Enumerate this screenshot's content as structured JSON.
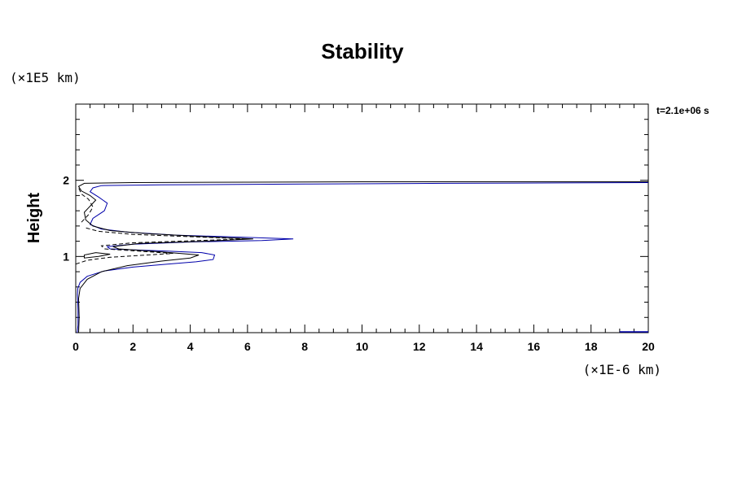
{
  "chart_data": {
    "type": "line",
    "title": "Stability",
    "ylabel": "Height",
    "xlabel": "",
    "y_unit_label": "(×1E5 km)",
    "x_unit_label": "(×1E-6 km)",
    "time_label": "t=2.1e+06 s",
    "xlim": [
      0,
      20
    ],
    "ylim": [
      0,
      3
    ],
    "x_ticks": [
      0,
      2,
      4,
      6,
      8,
      10,
      12,
      14,
      16,
      18,
      20
    ],
    "y_ticks_labeled": [
      1,
      2
    ],
    "grid": false,
    "colors": {
      "black": "#000000",
      "blue": "#0000aa"
    },
    "series": [
      {
        "color": "#0000aa",
        "dash": "solid",
        "points": [
          [
            0.05,
            0
          ],
          [
            0.08,
            0.1
          ],
          [
            0.08,
            0.3
          ],
          [
            0.06,
            0.5
          ],
          [
            0.07,
            0.58
          ],
          [
            0.15,
            0.66
          ],
          [
            0.4,
            0.74
          ],
          [
            1.0,
            0.81
          ],
          [
            2.0,
            0.86
          ],
          [
            3.2,
            0.9
          ],
          [
            4.2,
            0.93
          ],
          [
            4.8,
            0.96
          ],
          [
            4.85,
            1.02
          ],
          [
            4.4,
            1.05
          ],
          [
            3.2,
            1.07
          ],
          [
            1.8,
            1.09
          ],
          [
            1.2,
            1.1
          ],
          [
            1.1,
            1.13
          ],
          [
            2.0,
            1.16
          ],
          [
            4.0,
            1.19
          ],
          [
            6.5,
            1.21
          ],
          [
            7.6,
            1.23
          ],
          [
            6.0,
            1.25
          ],
          [
            3.5,
            1.28
          ],
          [
            1.8,
            1.32
          ],
          [
            0.9,
            1.36
          ],
          [
            0.5,
            1.42
          ],
          [
            0.6,
            1.5
          ],
          [
            1.0,
            1.6
          ],
          [
            1.1,
            1.7
          ],
          [
            0.8,
            1.78
          ],
          [
            0.5,
            1.85
          ],
          [
            0.6,
            1.9
          ],
          [
            0.9,
            1.93
          ],
          [
            3,
            1.94
          ],
          [
            8,
            1.95
          ],
          [
            13,
            1.96
          ],
          [
            17,
            1.965
          ],
          [
            20,
            1.97
          ]
        ]
      },
      {
        "color": "#000000",
        "dash": "solid",
        "points": [
          [
            0.1,
            0
          ],
          [
            0.12,
            0.2
          ],
          [
            0.1,
            0.45
          ],
          [
            0.15,
            0.58
          ],
          [
            0.4,
            0.7
          ],
          [
            0.9,
            0.8
          ],
          [
            1.8,
            0.88
          ],
          [
            3.0,
            0.94
          ],
          [
            4.0,
            0.98
          ],
          [
            4.3,
            1.02
          ],
          [
            3.0,
            1.06
          ],
          [
            1.5,
            1.1
          ],
          [
            1.3,
            1.13
          ],
          [
            2.2,
            1.17
          ],
          [
            4.5,
            1.2
          ],
          [
            6.2,
            1.23
          ],
          [
            4.5,
            1.26
          ],
          [
            2.5,
            1.3
          ],
          [
            1.2,
            1.34
          ],
          [
            0.6,
            1.4
          ],
          [
            0.35,
            1.48
          ],
          [
            0.3,
            1.58
          ],
          [
            0.5,
            1.66
          ],
          [
            0.7,
            1.74
          ],
          [
            0.5,
            1.8
          ],
          [
            0.2,
            1.86
          ],
          [
            0.1,
            1.92
          ],
          [
            0.3,
            1.96
          ],
          [
            2,
            1.97
          ],
          [
            6,
            1.975
          ],
          [
            10,
            1.98
          ],
          [
            14,
            1.98
          ],
          [
            20,
            1.98
          ]
        ]
      },
      {
        "color": "#000000",
        "dash": "dashed",
        "points": [
          [
            0.0,
            0.9
          ],
          [
            0.4,
            0.95
          ],
          [
            1.2,
            0.99
          ],
          [
            2.5,
            1.02
          ],
          [
            3.4,
            1.04
          ],
          [
            2.2,
            1.07
          ],
          [
            1.0,
            1.1
          ],
          [
            0.9,
            1.14
          ],
          [
            2.0,
            1.18
          ],
          [
            4.3,
            1.21
          ],
          [
            6.0,
            1.23
          ],
          [
            4.0,
            1.26
          ],
          [
            2.0,
            1.29
          ],
          [
            0.8,
            1.33
          ],
          [
            0.3,
            1.38
          ]
        ]
      },
      {
        "color": "#000000",
        "dash": "dashed",
        "points": [
          [
            0.2,
            1.45
          ],
          [
            0.45,
            1.55
          ],
          [
            0.6,
            1.65
          ],
          [
            0.45,
            1.75
          ],
          [
            0.2,
            1.82
          ],
          [
            0.1,
            1.9
          ]
        ]
      },
      {
        "color": "#000000",
        "dash": "solid",
        "points": [
          [
            0.7,
            1.05
          ],
          [
            1.2,
            1.03
          ],
          [
            0.8,
            1.0
          ],
          [
            0.3,
            0.98
          ],
          [
            0.3,
            1.02
          ],
          [
            0.7,
            1.05
          ]
        ]
      }
    ]
  }
}
